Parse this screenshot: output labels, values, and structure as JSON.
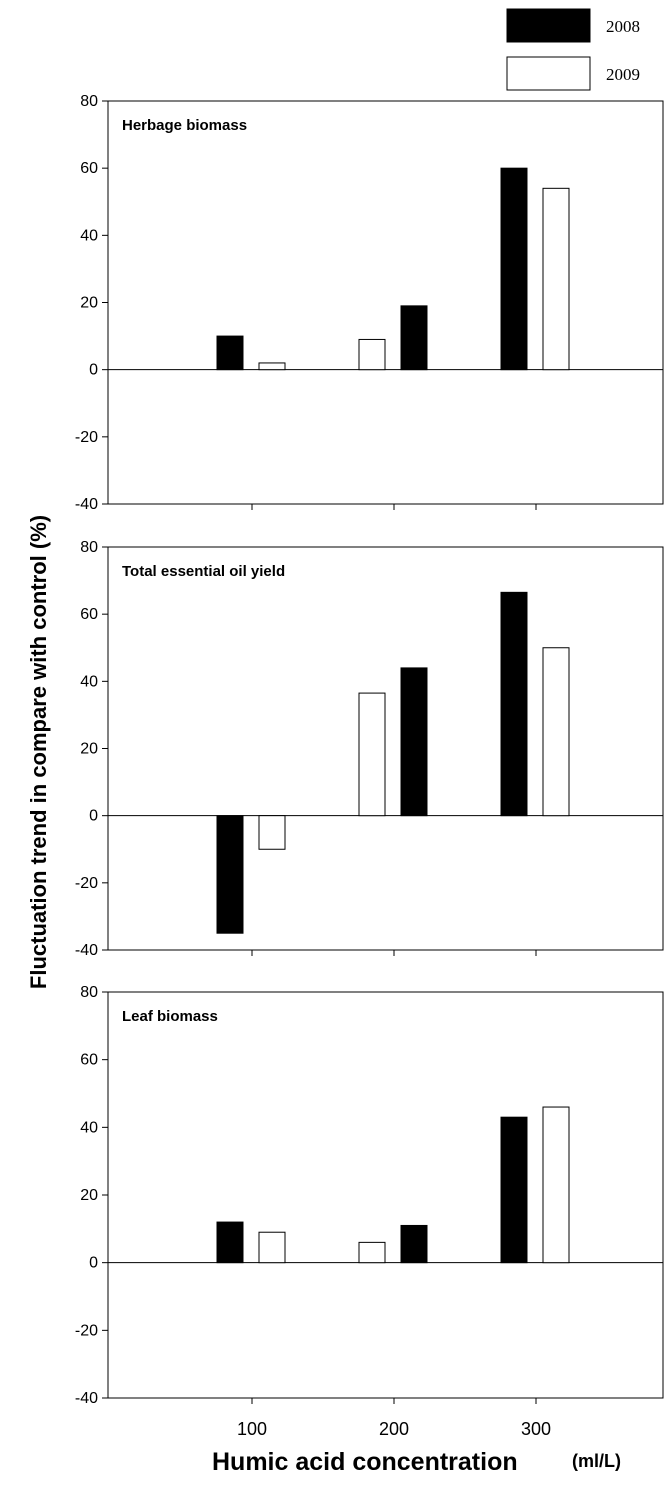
{
  "legend": {
    "entries": [
      {
        "label": "2008",
        "fill": "#000000"
      },
      {
        "label": "2009",
        "fill": "#ffffff"
      }
    ]
  },
  "ylabel": "Fluctuation trend in compare with control (%)",
  "xlabel": "Humic acid concentration",
  "xlabel_unit": "(ml/L)",
  "chart_data": [
    {
      "type": "bar",
      "title": "Herbage biomass",
      "categories": [
        "100",
        "200",
        "300"
      ],
      "ylim": [
        -40,
        80
      ],
      "yticks": [
        -40,
        -20,
        0,
        20,
        40,
        60,
        80
      ],
      "bars": [
        {
          "category": "100",
          "series": "2008",
          "value": 10
        },
        {
          "category": "100",
          "series": "2009",
          "value": 2
        },
        {
          "category": "200",
          "series": "2009",
          "value": 9
        },
        {
          "category": "200",
          "series": "2008",
          "value": 19
        },
        {
          "category": "300",
          "series": "2008",
          "value": 60
        },
        {
          "category": "300",
          "series": "2009",
          "value": 54
        }
      ]
    },
    {
      "type": "bar",
      "title": "Total essential oil yield",
      "categories": [
        "100",
        "200",
        "300"
      ],
      "ylim": [
        -40,
        80
      ],
      "yticks": [
        -40,
        -20,
        0,
        20,
        40,
        60,
        80
      ],
      "bars": [
        {
          "category": "100",
          "series": "2008",
          "value": -35
        },
        {
          "category": "100",
          "series": "2009",
          "value": -10
        },
        {
          "category": "200",
          "series": "2009",
          "value": 36.5
        },
        {
          "category": "200",
          "series": "2008",
          "value": 44
        },
        {
          "category": "300",
          "series": "2008",
          "value": 66.5
        },
        {
          "category": "300",
          "series": "2009",
          "value": 50
        }
      ]
    },
    {
      "type": "bar",
      "title": "Leaf biomass",
      "categories": [
        "100",
        "200",
        "300"
      ],
      "ylim": [
        -40,
        80
      ],
      "yticks": [
        -40,
        -20,
        0,
        20,
        40,
        60,
        80
      ],
      "bars": [
        {
          "category": "100",
          "series": "2008",
          "value": 12
        },
        {
          "category": "100",
          "series": "2009",
          "value": 9
        },
        {
          "category": "200",
          "series": "2009",
          "value": 6
        },
        {
          "category": "200",
          "series": "2008",
          "value": 11
        },
        {
          "category": "300",
          "series": "2008",
          "value": 43
        },
        {
          "category": "300",
          "series": "2009",
          "value": 46
        }
      ]
    }
  ]
}
